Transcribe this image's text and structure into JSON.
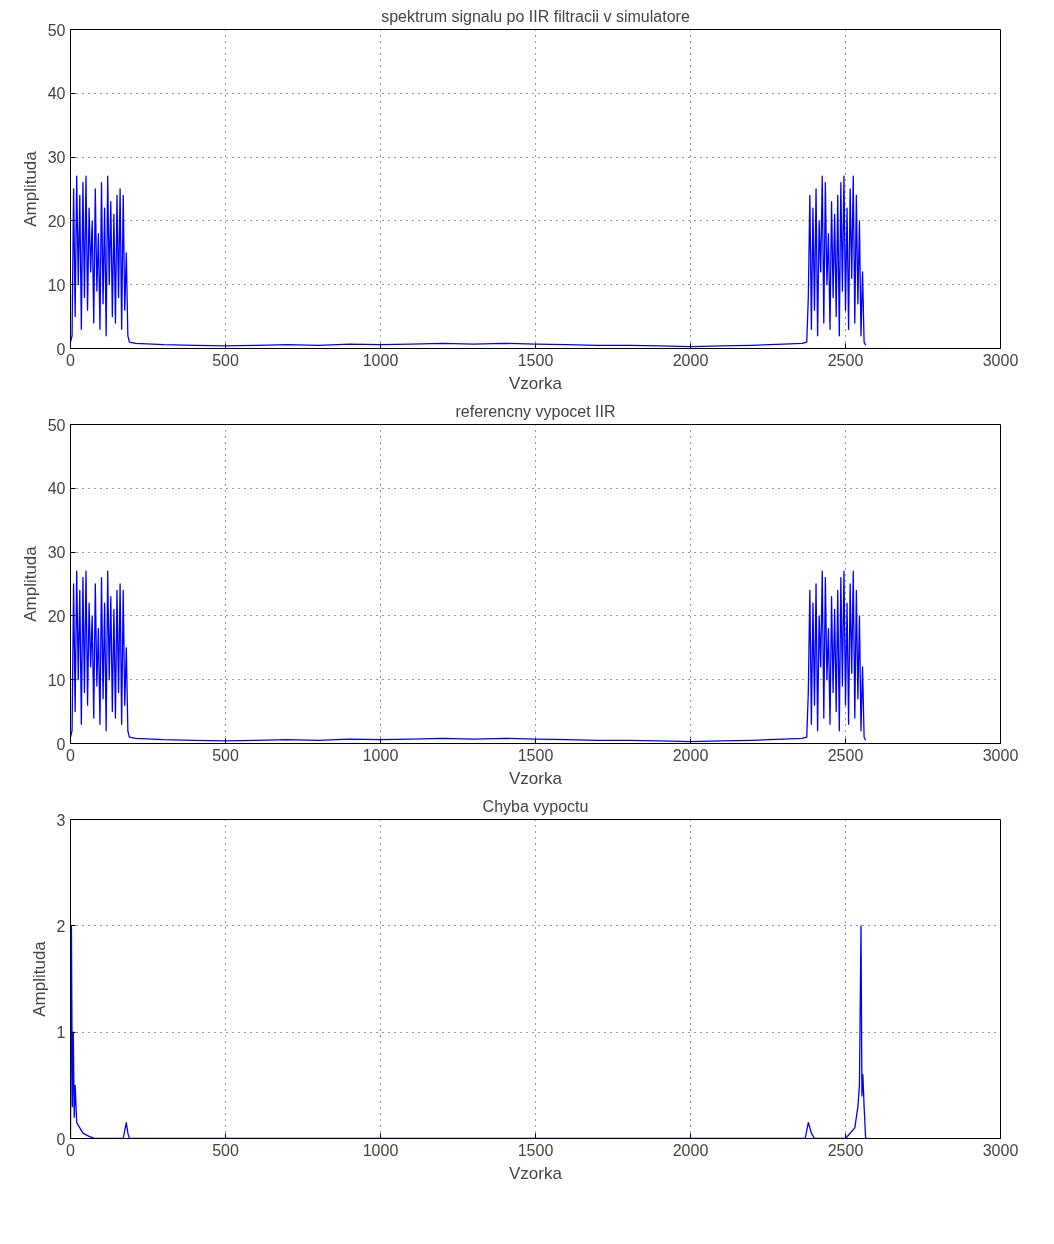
{
  "chart_data": [
    {
      "type": "line",
      "title": "spektrum signalu po IIR filtracii v simulatore",
      "xlabel": "Vzorka",
      "ylabel": "Amplituda",
      "xlim": [
        0,
        3000
      ],
      "ylim": [
        0,
        50
      ],
      "xticks": [
        0,
        500,
        1000,
        1500,
        2000,
        2500,
        3000
      ],
      "yticks": [
        0,
        10,
        20,
        30,
        40,
        50
      ],
      "grid": true,
      "x": [
        0,
        5,
        10,
        15,
        20,
        25,
        30,
        35,
        40,
        45,
        50,
        55,
        60,
        65,
        70,
        75,
        80,
        85,
        90,
        95,
        100,
        105,
        110,
        115,
        120,
        125,
        130,
        135,
        140,
        145,
        150,
        155,
        160,
        165,
        170,
        175,
        180,
        185,
        190,
        210,
        300,
        400,
        500,
        600,
        700,
        800,
        900,
        1000,
        1100,
        1200,
        1300,
        1400,
        1500,
        1600,
        1700,
        1800,
        1900,
        2000,
        2100,
        2200,
        2300,
        2360,
        2375,
        2380,
        2385,
        2390,
        2395,
        2400,
        2405,
        2410,
        2415,
        2420,
        2425,
        2430,
        2435,
        2440,
        2445,
        2450,
        2455,
        2460,
        2465,
        2470,
        2475,
        2480,
        2485,
        2490,
        2495,
        2500,
        2505,
        2510,
        2515,
        2520,
        2525,
        2530,
        2535,
        2540,
        2545,
        2550,
        2555,
        2560,
        2565
      ],
      "series": [
        {
          "color": "#0000ff",
          "values": [
            1,
            2,
            25,
            5,
            27,
            10,
            24,
            3,
            26,
            8,
            27,
            6,
            22,
            12,
            20,
            4,
            25,
            9,
            18,
            3,
            26,
            7,
            22,
            2,
            27,
            10,
            23,
            5,
            21,
            4,
            24,
            8,
            25,
            3,
            24,
            6,
            15,
            2,
            1,
            0.8,
            0.6,
            0.5,
            0.4,
            0.5,
            0.6,
            0.5,
            0.7,
            0.6,
            0.7,
            0.8,
            0.7,
            0.8,
            0.7,
            0.6,
            0.5,
            0.5,
            0.4,
            0.3,
            0.4,
            0.5,
            0.7,
            0.8,
            1,
            8,
            24,
            3,
            22,
            6,
            25,
            2,
            20,
            12,
            27,
            4,
            26,
            10,
            18,
            3,
            23,
            8,
            21,
            5,
            24,
            2,
            26,
            9,
            27,
            6,
            22,
            3,
            25,
            11,
            27,
            4,
            24,
            7,
            20,
            2,
            12,
            1,
            0.5
          ]
        }
      ]
    },
    {
      "type": "line",
      "title": "referencny vypocet IIR",
      "xlabel": "Vzorka",
      "ylabel": "Amplituda",
      "xlim": [
        0,
        3000
      ],
      "ylim": [
        0,
        50
      ],
      "xticks": [
        0,
        500,
        1000,
        1500,
        2000,
        2500,
        3000
      ],
      "yticks": [
        0,
        10,
        20,
        30,
        40,
        50
      ],
      "grid": true,
      "x": [
        0,
        5,
        10,
        15,
        20,
        25,
        30,
        35,
        40,
        45,
        50,
        55,
        60,
        65,
        70,
        75,
        80,
        85,
        90,
        95,
        100,
        105,
        110,
        115,
        120,
        125,
        130,
        135,
        140,
        145,
        150,
        155,
        160,
        165,
        170,
        175,
        180,
        185,
        190,
        210,
        300,
        400,
        500,
        600,
        700,
        800,
        900,
        1000,
        1100,
        1200,
        1300,
        1400,
        1500,
        1600,
        1700,
        1800,
        1900,
        2000,
        2100,
        2200,
        2300,
        2360,
        2375,
        2380,
        2385,
        2390,
        2395,
        2400,
        2405,
        2410,
        2415,
        2420,
        2425,
        2430,
        2435,
        2440,
        2445,
        2450,
        2455,
        2460,
        2465,
        2470,
        2475,
        2480,
        2485,
        2490,
        2495,
        2500,
        2505,
        2510,
        2515,
        2520,
        2525,
        2530,
        2535,
        2540,
        2545,
        2550,
        2555,
        2560,
        2565
      ],
      "series": [
        {
          "color": "#0000ff",
          "values": [
            1,
            2,
            25,
            5,
            27,
            10,
            24,
            3,
            26,
            8,
            27,
            6,
            22,
            12,
            20,
            4,
            25,
            9,
            18,
            3,
            26,
            7,
            22,
            2,
            27,
            10,
            23,
            5,
            21,
            4,
            24,
            8,
            25,
            3,
            24,
            6,
            15,
            2,
            1,
            0.8,
            0.6,
            0.5,
            0.4,
            0.5,
            0.6,
            0.5,
            0.7,
            0.6,
            0.7,
            0.8,
            0.7,
            0.8,
            0.7,
            0.6,
            0.5,
            0.5,
            0.4,
            0.3,
            0.4,
            0.5,
            0.7,
            0.8,
            1,
            8,
            24,
            3,
            22,
            6,
            25,
            2,
            20,
            12,
            27,
            4,
            26,
            10,
            18,
            3,
            23,
            8,
            21,
            5,
            24,
            2,
            26,
            9,
            27,
            6,
            22,
            3,
            25,
            11,
            27,
            4,
            24,
            7,
            20,
            2,
            12,
            1,
            0.5
          ]
        }
      ]
    },
    {
      "type": "line",
      "title": "Chyba vypoctu",
      "xlabel": "Vzorka",
      "ylabel": "Amplituda",
      "xlim": [
        0,
        3000
      ],
      "ylim": [
        0,
        3
      ],
      "xticks": [
        0,
        500,
        1000,
        1500,
        2000,
        2500,
        3000
      ],
      "yticks": [
        0,
        1,
        2,
        3
      ],
      "grid": true,
      "x": [
        0,
        3,
        6,
        9,
        12,
        15,
        20,
        30,
        40,
        60,
        80,
        100,
        170,
        180,
        185,
        190,
        300,
        1000,
        2000,
        2370,
        2380,
        2390,
        2400,
        2500,
        2530,
        2540,
        2545,
        2550,
        2553,
        2556,
        2560,
        2565,
        2570
      ],
      "series": [
        {
          "color": "#0000ff",
          "values": [
            0,
            2,
            0.3,
            1,
            0.2,
            0.5,
            0.15,
            0.1,
            0.05,
            0.02,
            0,
            0,
            0,
            0.15,
            0.05,
            0,
            0,
            0,
            0,
            0,
            0.15,
            0.05,
            0,
            0,
            0.1,
            0.3,
            0.5,
            2,
            0.4,
            0.6,
            0.3,
            0,
            0
          ]
        }
      ]
    }
  ]
}
